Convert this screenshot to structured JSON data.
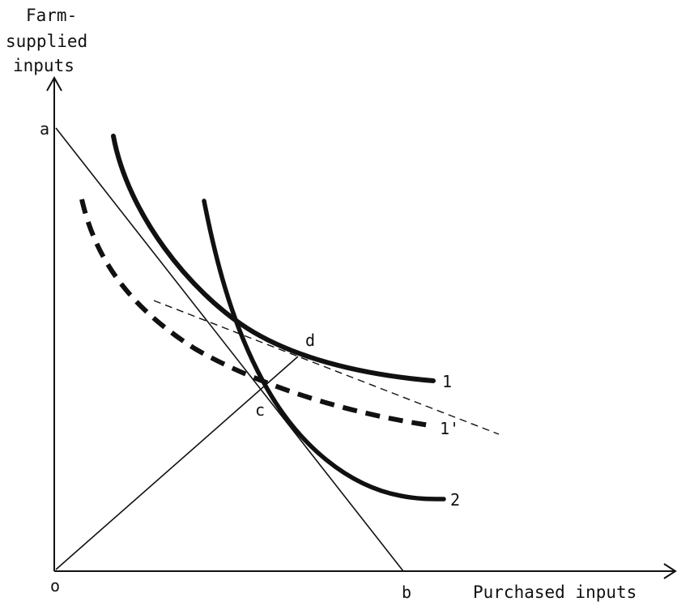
{
  "axes": {
    "y_label_lines": [
      "Farm-",
      "supplied",
      "inputs"
    ],
    "x_label": "Purchased inputs"
  },
  "points": {
    "a": "a",
    "b": "b",
    "c": "c",
    "d": "d",
    "o": "o"
  },
  "curves": {
    "isoquant_1": "1",
    "isoquant_1_prime": "1'",
    "isoquant_2": "2"
  },
  "colors": {
    "ink": "#111111",
    "background": "#ffffff"
  }
}
